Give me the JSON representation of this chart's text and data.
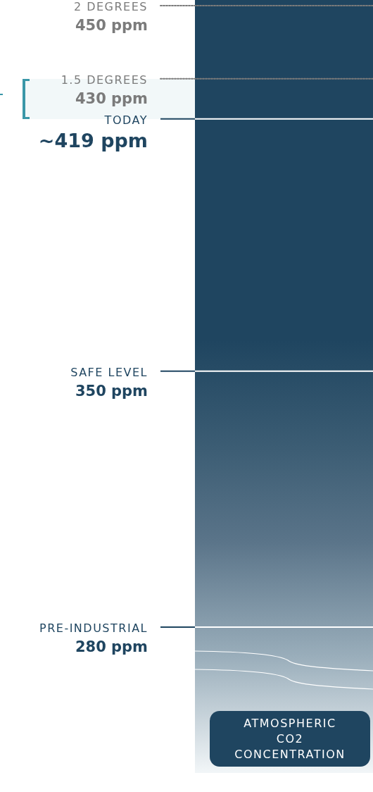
{
  "chart_data": {
    "type": "other",
    "xlabel": "ATMOSPHERIC\nCO2\nCONCENTRATION",
    "categories": [
      "2 DEGREES",
      "1.5 DEGREES",
      "TODAY",
      "SAFE LEVEL",
      "PRE-INDUSTRIAL"
    ],
    "series": [
      {
        "color": "#7b7b7b",
        "line_style": "dotted",
        "values": [
          450,
          430,
          null,
          null,
          null
        ],
        "value_labels": [
          "450 ppm",
          "430 ppm",
          null,
          null,
          null
        ]
      },
      {
        "color": "#1f4560",
        "line_style": "solid",
        "values": [
          null,
          null,
          419,
          350,
          280
        ],
        "value_labels": [
          null,
          null,
          "~419 ppm",
          "350 ppm",
          "280 ppm"
        ]
      }
    ]
  }
}
